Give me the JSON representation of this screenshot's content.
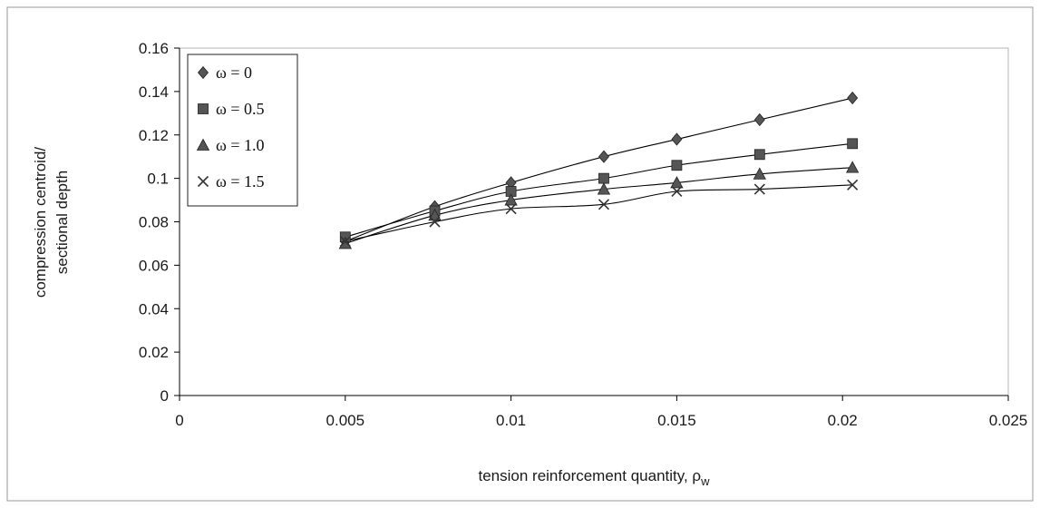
{
  "chart_data": {
    "type": "line",
    "xlabel": "tension reinforcement quantity, ρ",
    "xlabel_sub": "w",
    "ylabel_line1": "compression centroid/",
    "ylabel_line2": "sectional depth",
    "xlim": [
      0,
      0.025
    ],
    "ylim": [
      0,
      0.16
    ],
    "xticks": [
      "0",
      "0.005",
      "0.01",
      "0.015",
      "0.02",
      "0.025"
    ],
    "yticks": [
      "0",
      "0.02",
      "0.04",
      "0.06",
      "0.08",
      "0.1",
      "0.12",
      "0.14",
      "0.16"
    ],
    "grid": false,
    "legend_position": "top-left",
    "series": [
      {
        "name": "ω = 0",
        "marker": "diamond",
        "color": "#555555",
        "x": [
          0.005,
          0.0077,
          0.01,
          0.0128,
          0.015,
          0.0175,
          0.0203
        ],
        "y": [
          0.071,
          0.087,
          0.098,
          0.11,
          0.118,
          0.127,
          0.137
        ]
      },
      {
        "name": "ω = 0.5",
        "marker": "square",
        "color": "#555555",
        "x": [
          0.005,
          0.0077,
          0.01,
          0.0128,
          0.015,
          0.0175,
          0.0203
        ],
        "y": [
          0.073,
          0.085,
          0.094,
          0.1,
          0.106,
          0.111,
          0.116
        ]
      },
      {
        "name": "ω = 1.0",
        "marker": "triangle",
        "color": "#555555",
        "x": [
          0.005,
          0.0077,
          0.01,
          0.0128,
          0.015,
          0.0175,
          0.0203
        ],
        "y": [
          0.07,
          0.083,
          0.09,
          0.095,
          0.098,
          0.102,
          0.105
        ]
      },
      {
        "name": "ω = 1.5",
        "marker": "x",
        "color": "#333333",
        "x": [
          0.005,
          0.0077,
          0.01,
          0.0128,
          0.015,
          0.0175,
          0.0203
        ],
        "y": [
          0.071,
          0.08,
          0.086,
          0.088,
          0.094,
          0.095,
          0.097
        ]
      }
    ]
  }
}
